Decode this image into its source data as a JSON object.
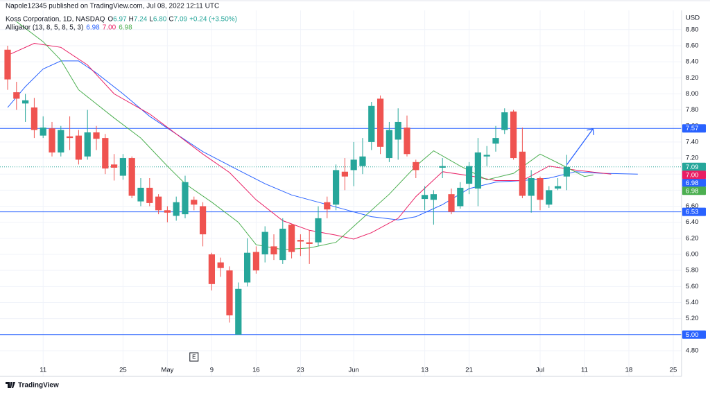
{
  "header": "Napole12345 published on TradingView.com, Jul 08, 2022 12:11 UTC",
  "footer": "TradingView",
  "chart_data": {
    "type": "candlestick",
    "title": "Koss Corporation, 1D, NASDAQ",
    "legend_ohlc": [
      {
        "key": "O",
        "label": "6.97"
      },
      {
        "key": "H",
        "label": "7.24"
      },
      {
        "key": "L",
        "label": "6.80"
      },
      {
        "key": "C",
        "label": "7.09"
      }
    ],
    "change": "+0.24 (+3.50%)",
    "currency": "USD",
    "up_color": "#26a69a",
    "down_color": "#ef5350",
    "grid": true,
    "xlim": [
      -0.86,
      75.94
    ],
    "ylim": [
      4.48,
      9.04
    ],
    "xticks": [
      {
        "value": 4,
        "label": "11"
      },
      {
        "value": 13,
        "label": "25"
      },
      {
        "value": 18,
        "label": "May"
      },
      {
        "value": 23,
        "label": "9"
      },
      {
        "value": 28,
        "label": "16"
      },
      {
        "value": 33,
        "label": "23"
      },
      {
        "value": 39,
        "label": "Jun"
      },
      {
        "value": 47,
        "label": "13"
      },
      {
        "value": 52,
        "label": "21"
      },
      {
        "value": 60,
        "label": "Jul"
      },
      {
        "value": 65,
        "label": "11"
      },
      {
        "value": 70,
        "label": "18"
      },
      {
        "value": 75,
        "label": "25"
      }
    ],
    "yticks": [
      {
        "value": 4.8,
        "label": "4.80"
      },
      {
        "value": 5,
        "label": "5.00"
      },
      {
        "value": 5.2,
        "label": "5.20"
      },
      {
        "value": 5.4,
        "label": "5.40"
      },
      {
        "value": 5.6,
        "label": "5.60"
      },
      {
        "value": 5.8,
        "label": "5.80"
      },
      {
        "value": 6,
        "label": "6.00"
      },
      {
        "value": 6.2,
        "label": "6.20"
      },
      {
        "value": 6.4,
        "label": "6.40"
      },
      {
        "value": 6.6,
        "label": "6.60"
      },
      {
        "value": 6.8,
        "label": "6.80"
      },
      {
        "value": 7,
        "label": "7.00"
      },
      {
        "value": 7.2,
        "label": "7.20"
      },
      {
        "value": 7.4,
        "label": "7.40"
      },
      {
        "value": 7.6,
        "label": "7.60"
      },
      {
        "value": 7.8,
        "label": "7.80"
      },
      {
        "value": 8,
        "label": "8.00"
      },
      {
        "value": 8.2,
        "label": "8.20"
      },
      {
        "value": 8.4,
        "label": "8.40"
      },
      {
        "value": 8.6,
        "label": "8.60"
      },
      {
        "value": 8.8,
        "label": "8.80"
      }
    ],
    "candles": {
      "open": [
        8.55,
        8.02,
        7.88,
        7.83,
        7.48,
        7.57,
        7.27,
        7.47,
        7.48,
        7.22,
        7.52,
        7.45,
        7.12,
        6.98,
        7.2,
        6.66,
        6.83,
        6.72,
        6.55,
        6.48,
        6.5,
        6.68,
        6.6,
        6.0,
        5.9,
        5.8,
        5.0,
        5.65,
        6.03,
        6.0,
        6.1,
        5.93,
        6.37,
        6.18,
        6.15,
        6.15,
        6.65,
        6.62,
        7.03,
        7.05,
        7.1,
        7.4,
        7.94,
        7.2,
        7.43,
        7.58,
        7.15,
        6.69,
        6.68,
        7.08,
        6.75,
        6.6,
        6.88,
        6.82,
        7.22,
        7.38,
        7.55,
        7.78,
        7.28,
        6.73,
        6.95,
        6.62,
        6.82,
        6.97
      ],
      "high": [
        8.6,
        8.15,
        8.0,
        7.95,
        7.72,
        7.65,
        7.6,
        7.72,
        7.55,
        7.8,
        7.6,
        7.5,
        7.25,
        7.25,
        7.22,
        6.95,
        6.95,
        6.75,
        6.6,
        6.72,
        6.98,
        6.72,
        6.65,
        6.02,
        5.96,
        5.85,
        5.65,
        6.2,
        6.1,
        6.35,
        6.25,
        6.45,
        6.38,
        6.25,
        6.3,
        6.6,
        6.72,
        7.12,
        7.2,
        7.4,
        7.45,
        7.9,
        7.98,
        7.65,
        7.82,
        7.73,
        7.18,
        6.85,
        6.8,
        7.2,
        6.82,
        6.9,
        7.15,
        7.45,
        7.35,
        7.6,
        7.82,
        7.8,
        7.58,
        7.05,
        6.97,
        6.85,
        6.95,
        7.24
      ],
      "low": [
        8.05,
        7.8,
        7.65,
        7.45,
        7.45,
        7.22,
        7.22,
        7.3,
        7.12,
        7.18,
        7.3,
        7.0,
        6.92,
        6.93,
        6.7,
        6.6,
        6.6,
        6.5,
        6.4,
        6.42,
        6.45,
        6.55,
        6.1,
        5.55,
        5.72,
        5.15,
        5.0,
        5.6,
        5.76,
        5.9,
        5.93,
        5.88,
        5.95,
        5.98,
        5.88,
        6.1,
        6.45,
        6.55,
        6.8,
        6.85,
        7.0,
        7.3,
        7.25,
        7.15,
        7.18,
        7.22,
        6.95,
        6.55,
        6.37,
        6.95,
        6.5,
        6.57,
        6.75,
        6.6,
        7.1,
        7.28,
        7.5,
        7.18,
        6.7,
        6.52,
        6.55,
        6.58,
        6.8,
        6.8
      ],
      "close": [
        8.18,
        7.94,
        7.92,
        7.55,
        7.58,
        7.27,
        7.55,
        7.45,
        7.18,
        7.52,
        7.44,
        7.07,
        7.08,
        7.2,
        6.73,
        6.83,
        6.64,
        6.55,
        6.52,
        6.65,
        6.9,
        6.62,
        6.25,
        5.63,
        5.83,
        5.24,
        5.57,
        6.02,
        5.8,
        6.28,
        6.0,
        6.32,
        6.03,
        6.16,
        6.13,
        6.45,
        6.56,
        7.05,
        6.97,
        7.18,
        7.22,
        7.85,
        7.34,
        7.55,
        7.65,
        7.25,
        7.05,
        6.74,
        6.75,
        7.1,
        6.53,
        6.83,
        7.1,
        7.27,
        7.24,
        7.45,
        7.77,
        7.2,
        6.73,
        6.95,
        6.68,
        6.8,
        6.85,
        7.09
      ]
    },
    "last_price": {
      "value": 7.09,
      "label": "7.09"
    },
    "indicator": {
      "label": "Alligator (13, 8, 5, 8, 5, 3)",
      "lines": [
        {
          "color": "#2962ff",
          "last": 6.98,
          "x": [
            0,
            2,
            4,
            6,
            8,
            10,
            13,
            16,
            19,
            22,
            26,
            29,
            32,
            35,
            38,
            41,
            44,
            46,
            49,
            52,
            55,
            58,
            61,
            64,
            67,
            71
          ],
          "values": [
            7.83,
            8.09,
            8.31,
            8.41,
            8.41,
            8.26,
            8.0,
            7.72,
            7.5,
            7.28,
            7.05,
            6.88,
            6.74,
            6.65,
            6.56,
            6.47,
            6.43,
            6.47,
            6.62,
            6.82,
            6.9,
            6.92,
            6.95,
            7.03,
            7.01,
            7.0
          ]
        },
        {
          "color": "#e91e63",
          "last": {
            "value": 7,
            "label": "7.00"
          },
          "x": [
            0,
            3,
            6,
            9,
            12,
            16,
            19,
            22,
            25,
            28,
            31,
            34,
            37,
            39,
            41,
            44,
            46,
            49,
            52,
            55,
            58,
            61,
            64,
            68
          ],
          "values": [
            8.48,
            8.63,
            8.58,
            8.36,
            8.0,
            7.75,
            7.5,
            7.25,
            7.02,
            6.68,
            6.42,
            6.3,
            6.24,
            6.19,
            6.27,
            6.45,
            6.72,
            7.03,
            6.98,
            6.92,
            6.92,
            7.1,
            7.05,
            7.0
          ]
        },
        {
          "color": "#4caf50",
          "last": 6.98,
          "x": [
            1,
            4,
            6,
            8,
            12,
            15,
            18,
            20,
            23,
            26,
            28,
            31,
            34,
            37,
            40,
            43,
            46,
            48,
            51,
            54,
            57,
            60,
            62,
            65,
            66
          ],
          "values": [
            8.9,
            8.65,
            8.42,
            8.05,
            7.7,
            7.45,
            7.1,
            6.88,
            6.65,
            6.4,
            6.12,
            6.06,
            6.08,
            6.15,
            6.45,
            6.75,
            7.1,
            7.29,
            7.1,
            6.93,
            7.01,
            7.25,
            7.14,
            6.97,
            6.99
          ]
        }
      ]
    },
    "price_lines": [
      7.57,
      6.53,
      {
        "value": 5,
        "label": "5.00"
      }
    ],
    "price_line_color": "#2962ff",
    "events": [
      {
        "x": 21,
        "label": "E"
      }
    ]
  }
}
